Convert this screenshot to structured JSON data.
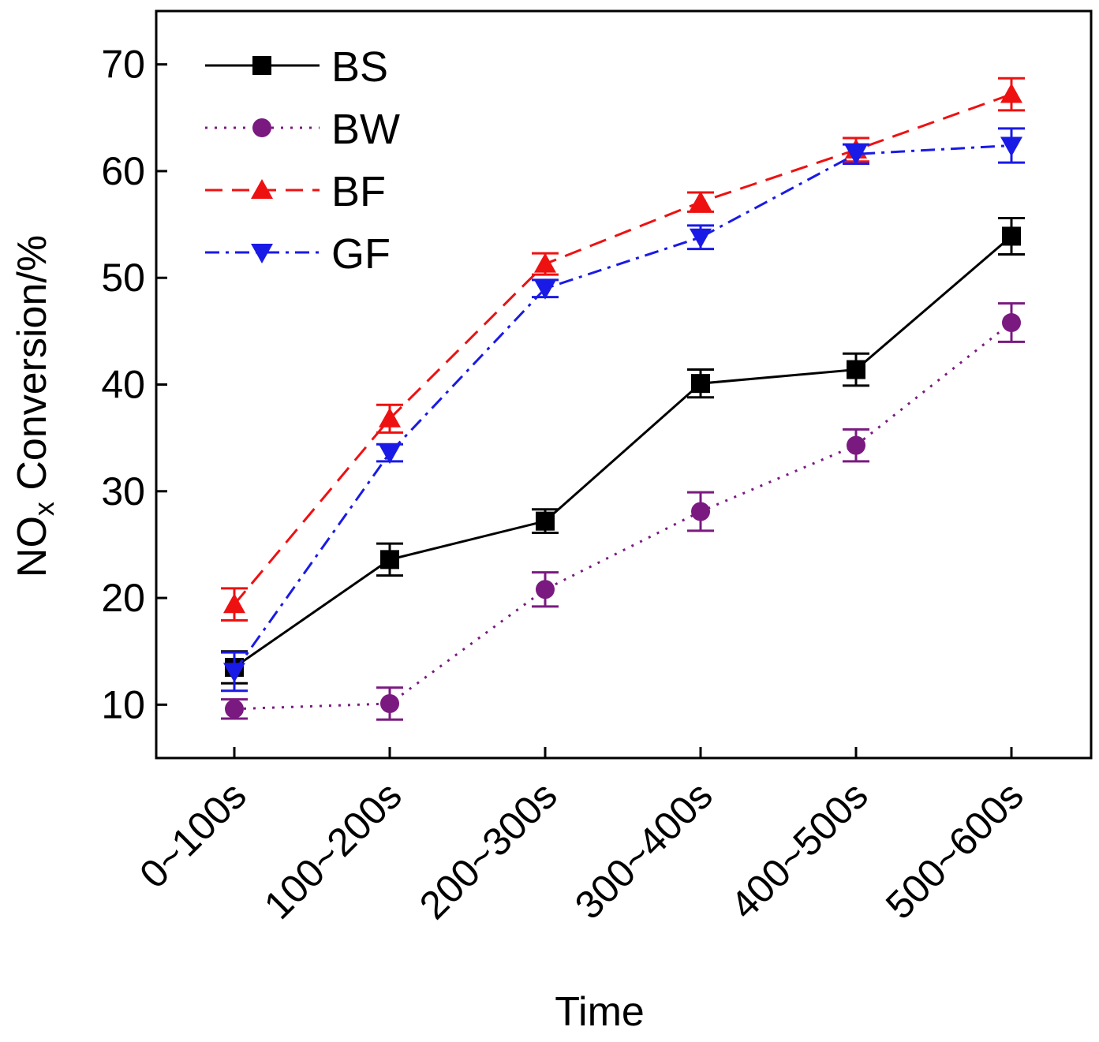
{
  "chart_data": {
    "type": "line",
    "title": "",
    "xlabel": "Time",
    "ylabel": {
      "prefix": "NO",
      "subscript": "x",
      "suffix": " Conversion/%"
    },
    "ylim": [
      5,
      75
    ],
    "yticks": [
      "10",
      "20",
      "30",
      "40",
      "50",
      "60",
      "70"
    ],
    "categories": [
      "0~100s",
      "100~200s",
      "200~300s",
      "300~400s",
      "400~500s",
      "500~600s"
    ],
    "legend_position": "top-left",
    "grid": false,
    "series": [
      {
        "name": "BS",
        "color": "#000000",
        "marker": "square",
        "line": "solid",
        "values": [
          13.5,
          23.6,
          27.2,
          40.1,
          41.4,
          53.9
        ],
        "errors": [
          1.5,
          1.5,
          1.1,
          1.3,
          1.5,
          1.7
        ]
      },
      {
        "name": "BW",
        "color": "#7a1a80",
        "marker": "circle",
        "line": "dotted",
        "values": [
          9.6,
          10.1,
          20.8,
          28.1,
          34.3,
          45.8
        ],
        "errors": [
          0.9,
          1.5,
          1.6,
          1.8,
          1.5,
          1.8
        ]
      },
      {
        "name": "BF",
        "color": "#ee1111",
        "marker": "triangle-up",
        "line": "dashed",
        "values": [
          19.4,
          36.8,
          51.3,
          57.1,
          62.0,
          67.2
        ],
        "errors": [
          1.5,
          1.3,
          1.0,
          0.9,
          1.1,
          1.5
        ]
      },
      {
        "name": "GF",
        "color": "#1a1ae6",
        "marker": "triangle-down",
        "line": "dashdot",
        "values": [
          13.1,
          33.6,
          49.0,
          53.8,
          61.6,
          62.4
        ],
        "errors": [
          1.8,
          0.8,
          0.8,
          1.1,
          0.9,
          1.6
        ]
      }
    ]
  }
}
